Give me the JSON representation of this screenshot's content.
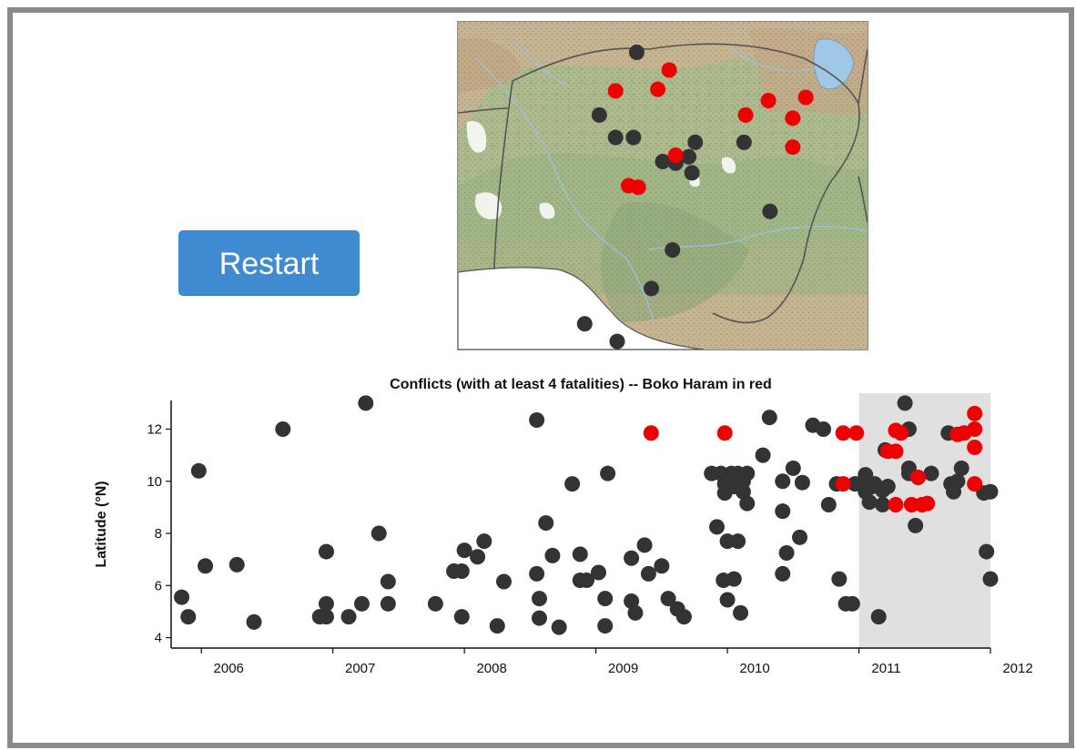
{
  "controls": {
    "restart_label": "Restart"
  },
  "colors": {
    "conflict": "#333333",
    "boko_haram": "#ee0000",
    "highlight": "#e0e0e0",
    "button": "#3f8ad0",
    "map_land": "#c9b89a",
    "map_green": "#9fb88a",
    "map_water": "#ffffff"
  },
  "map": {
    "lon_range": [
      2.4,
      15.0
    ],
    "lat_range": [
      3.8,
      14.0
    ],
    "points": [
      {
        "lon": 7.9,
        "lat": 13.05,
        "bh": false
      },
      {
        "lon": 8.9,
        "lat": 12.5,
        "bh": true
      },
      {
        "lon": 7.25,
        "lat": 11.85,
        "bh": true
      },
      {
        "lon": 8.55,
        "lat": 11.9,
        "bh": true
      },
      {
        "lon": 6.75,
        "lat": 11.1,
        "bh": false
      },
      {
        "lon": 7.25,
        "lat": 10.4,
        "bh": false
      },
      {
        "lon": 7.8,
        "lat": 10.4,
        "bh": false
      },
      {
        "lon": 11.25,
        "lat": 11.1,
        "bh": true
      },
      {
        "lon": 11.95,
        "lat": 11.55,
        "bh": true
      },
      {
        "lon": 13.1,
        "lat": 11.65,
        "bh": true
      },
      {
        "lon": 12.7,
        "lat": 11.0,
        "bh": true
      },
      {
        "lon": 12.7,
        "lat": 10.1,
        "bh": true
      },
      {
        "lon": 11.2,
        "lat": 10.25,
        "bh": false
      },
      {
        "lon": 9.7,
        "lat": 10.25,
        "bh": false
      },
      {
        "lon": 8.7,
        "lat": 9.65,
        "bh": false
      },
      {
        "lon": 9.1,
        "lat": 9.6,
        "bh": false
      },
      {
        "lon": 9.1,
        "lat": 9.85,
        "bh": true
      },
      {
        "lon": 9.5,
        "lat": 9.8,
        "bh": false
      },
      {
        "lon": 9.6,
        "lat": 9.3,
        "bh": false
      },
      {
        "lon": 7.65,
        "lat": 8.9,
        "bh": true
      },
      {
        "lon": 7.95,
        "lat": 8.85,
        "bh": true
      },
      {
        "lon": 12.0,
        "lat": 8.1,
        "bh": false
      },
      {
        "lon": 9.0,
        "lat": 6.9,
        "bh": false
      },
      {
        "lon": 8.35,
        "lat": 5.7,
        "bh": false
      },
      {
        "lon": 6.3,
        "lat": 4.6,
        "bh": false
      },
      {
        "lon": 7.3,
        "lat": 4.05,
        "bh": false
      }
    ]
  },
  "chart_data": {
    "type": "scatter",
    "title": "Conflicts (with at least 4 fatalities) -- Boko Haram in red",
    "xlabel": "",
    "ylabel": "Latitude (°N)",
    "x_ticks": [
      "2006",
      "2007",
      "2008",
      "2009",
      "2010",
      "2011",
      "2012"
    ],
    "y_ticks": [
      "4",
      "6",
      "8",
      "10",
      "12"
    ],
    "xlim": [
      2005.77,
      2012.0
    ],
    "ylim": [
      3.6,
      13.1
    ],
    "highlight_range": [
      2011.0,
      2012.0
    ],
    "series": [
      {
        "name": "Boko Haram",
        "color": "#ee0000",
        "points": [
          [
            2009.42,
            11.85
          ],
          [
            2009.98,
            11.85
          ],
          [
            2010.88,
            11.85
          ],
          [
            2010.98,
            11.85
          ],
          [
            2010.88,
            9.9
          ],
          [
            2011.22,
            11.15
          ],
          [
            2011.28,
            11.15
          ],
          [
            2011.28,
            11.95
          ],
          [
            2011.32,
            11.85
          ],
          [
            2011.28,
            9.1
          ],
          [
            2011.4,
            9.1
          ],
          [
            2011.48,
            9.1
          ],
          [
            2011.52,
            9.15
          ],
          [
            2011.45,
            10.15
          ],
          [
            2011.75,
            11.8
          ],
          [
            2011.8,
            11.85
          ],
          [
            2011.88,
            12.6
          ],
          [
            2011.88,
            12.0
          ],
          [
            2011.88,
            11.3
          ],
          [
            2011.88,
            9.9
          ]
        ]
      },
      {
        "name": "",
        "color": "#333333",
        "points": [
          [
            2005.85,
            5.55
          ],
          [
            2005.9,
            4.8
          ],
          [
            2005.98,
            10.4
          ],
          [
            2006.03,
            6.75
          ],
          [
            2006.27,
            6.8
          ],
          [
            2006.4,
            4.6
          ],
          [
            2006.62,
            12.0
          ],
          [
            2006.9,
            4.8
          ],
          [
            2006.95,
            7.3
          ],
          [
            2006.95,
            5.3
          ],
          [
            2006.95,
            4.8
          ],
          [
            2007.12,
            4.8
          ],
          [
            2007.22,
            5.3
          ],
          [
            2007.25,
            13.0
          ],
          [
            2007.35,
            8.0
          ],
          [
            2007.42,
            6.15
          ],
          [
            2007.42,
            5.3
          ],
          [
            2007.78,
            5.3
          ],
          [
            2007.92,
            6.55
          ],
          [
            2007.98,
            6.55
          ],
          [
            2007.98,
            4.8
          ],
          [
            2008.0,
            7.35
          ],
          [
            2008.1,
            7.1
          ],
          [
            2008.15,
            7.7
          ],
          [
            2008.25,
            4.45
          ],
          [
            2008.3,
            6.15
          ],
          [
            2008.55,
            12.35
          ],
          [
            2008.55,
            6.45
          ],
          [
            2008.57,
            5.5
          ],
          [
            2008.57,
            4.75
          ],
          [
            2008.62,
            8.4
          ],
          [
            2008.67,
            7.15
          ],
          [
            2008.72,
            4.4
          ],
          [
            2008.82,
            9.9
          ],
          [
            2008.88,
            7.2
          ],
          [
            2008.88,
            6.2
          ],
          [
            2008.93,
            6.2
          ],
          [
            2009.02,
            6.5
          ],
          [
            2009.07,
            5.5
          ],
          [
            2009.07,
            4.45
          ],
          [
            2009.09,
            10.3
          ],
          [
            2009.27,
            7.05
          ],
          [
            2009.27,
            5.4
          ],
          [
            2009.3,
            4.95
          ],
          [
            2009.37,
            7.55
          ],
          [
            2009.4,
            6.45
          ],
          [
            2009.5,
            6.75
          ],
          [
            2009.55,
            5.5
          ],
          [
            2009.62,
            5.1
          ],
          [
            2009.67,
            4.8
          ],
          [
            2009.88,
            10.3
          ],
          [
            2009.92,
            8.25
          ],
          [
            2009.95,
            10.3
          ],
          [
            2009.97,
            6.2
          ],
          [
            2009.98,
            9.9
          ],
          [
            2009.98,
            9.55
          ],
          [
            2010.0,
            7.7
          ],
          [
            2010.0,
            5.45
          ],
          [
            2010.03,
            10.3
          ],
          [
            2010.05,
            9.8
          ],
          [
            2010.05,
            6.25
          ],
          [
            2010.08,
            10.3
          ],
          [
            2010.08,
            7.7
          ],
          [
            2010.1,
            4.95
          ],
          [
            2010.12,
            9.6
          ],
          [
            2010.12,
            10.0
          ],
          [
            2010.15,
            9.15
          ],
          [
            2010.15,
            10.3
          ],
          [
            2010.27,
            11.0
          ],
          [
            2010.32,
            12.45
          ],
          [
            2010.42,
            10.0
          ],
          [
            2010.42,
            8.85
          ],
          [
            2010.42,
            6.45
          ],
          [
            2010.45,
            7.25
          ],
          [
            2010.5,
            10.5
          ],
          [
            2010.55,
            7.85
          ],
          [
            2010.57,
            9.95
          ],
          [
            2010.65,
            12.15
          ],
          [
            2010.73,
            12.0
          ],
          [
            2010.77,
            9.1
          ],
          [
            2010.83,
            9.9
          ],
          [
            2010.85,
            6.25
          ],
          [
            2010.9,
            5.3
          ],
          [
            2010.95,
            5.3
          ],
          [
            2010.97,
            9.9
          ],
          [
            2011.02,
            9.9
          ],
          [
            2011.05,
            10.25
          ],
          [
            2011.05,
            9.6
          ],
          [
            2011.08,
            9.2
          ],
          [
            2011.1,
            9.8
          ],
          [
            2011.12,
            9.9
          ],
          [
            2011.15,
            4.8
          ],
          [
            2011.18,
            9.65
          ],
          [
            2011.18,
            9.1
          ],
          [
            2011.2,
            11.2
          ],
          [
            2011.22,
            9.8
          ],
          [
            2011.35,
            13.0
          ],
          [
            2011.38,
            12.0
          ],
          [
            2011.38,
            10.5
          ],
          [
            2011.38,
            10.3
          ],
          [
            2011.43,
            8.3
          ],
          [
            2011.55,
            10.3
          ],
          [
            2011.68,
            11.85
          ],
          [
            2011.7,
            9.9
          ],
          [
            2011.72,
            9.6
          ],
          [
            2011.75,
            10.0
          ],
          [
            2011.78,
            10.5
          ],
          [
            2011.95,
            9.55
          ],
          [
            2011.97,
            7.3
          ],
          [
            2012.0,
            9.6
          ],
          [
            2012.0,
            6.25
          ]
        ]
      }
    ],
    "grid": false,
    "legend": "none"
  }
}
